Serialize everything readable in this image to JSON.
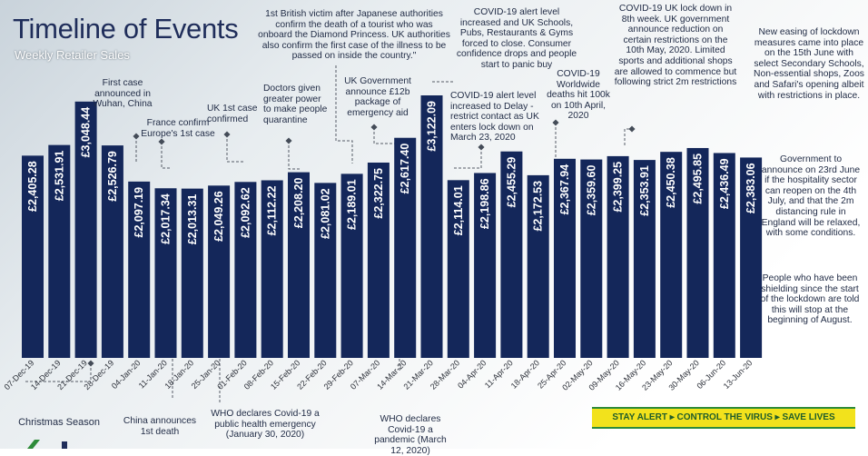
{
  "page": {
    "title": "Timeline of Events",
    "subtitle": "Weekly Retailer Sales",
    "banner": "STAY ALERT ▸ CONTROL THE VIRUS ▸ SAVE LIVES",
    "colors": {
      "bar": "#14275a",
      "title": "#1f2d5a",
      "banner_bg": "#f2e21c",
      "banner_text": "#1f5c2b"
    }
  },
  "chart_data": {
    "type": "bar",
    "title": "Weekly Retailer Sales",
    "xlabel": "",
    "ylabel": "",
    "ylim": [
      0,
      3100
    ],
    "grid": false,
    "categories": [
      "07-Dec-19",
      "14-Dec-19",
      "21-Dec-19",
      "28-Dec-19",
      "04-Jan-20",
      "11-Jan-20",
      "18-Jan-20",
      "25-Jan-20",
      "01-Feb-20",
      "08-Feb-20",
      "15-Feb-20",
      "22-Feb-20",
      "29-Feb-20",
      "07-Mar-20",
      "14-Mar-20",
      "21-Mar-20",
      "28-Mar-20",
      "04-Apr-20",
      "11-Apr-20",
      "18-Apr-20",
      "25-Apr-20",
      "02-May-20",
      "09-May-20",
      "16-May-20",
      "23-May-20",
      "30-May-20",
      "06-Jun-20",
      "13-Jun-20"
    ],
    "values": [
      2405.28,
      2531.91,
      3048.44,
      2526.79,
      2097.19,
      2017.34,
      2013.31,
      2049.26,
      2092.62,
      2112.22,
      2208.2,
      2081.02,
      2189.01,
      2322.75,
      2617.4,
      3122.09,
      2114.01,
      2198.86,
      2455.29,
      2172.53,
      2367.94,
      2359.6,
      2399.25,
      2353.91,
      2450.38,
      2495.85,
      2436.49,
      2383.06
    ],
    "labels": [
      "£2,405.28",
      "£2,531.91",
      "£3,048.44",
      "£2,526.79",
      "£2,097.19",
      "£2,017.34",
      "£2,013.31",
      "£2,049.26",
      "£2,092.62",
      "£2,112.22",
      "£2,208.20",
      "£2,081.02",
      "£2,189.01",
      "£2,322.75",
      "£2,617.40",
      "£3,122.09",
      "£2,114.01",
      "£2,198.86",
      "£2,455.29",
      "£2,172.53",
      "£2,367.94",
      "£2,359.60",
      "£2,399.25",
      "£2,353.91",
      "£2,450.38",
      "£2,495.85",
      "£2,436.49",
      "£2,383.06"
    ],
    "annotations": [
      {
        "text": "Christmas Season"
      },
      {
        "text": "First case announced in Wuhan, China"
      },
      {
        "text": "France confirm Europe's 1st case"
      },
      {
        "text": "China announces 1st death"
      },
      {
        "text": "UK 1st case confirmed"
      },
      {
        "text": "WHO declares Covid-19 a public health emergency (January 30, 2020)"
      },
      {
        "text": "Doctors given greater power to make people quarantine"
      },
      {
        "text": "1st British victim after Japanese authorities confirm the death of a tourist who was onboard the Diamond Princess. UK authorities also confirm the first case of the illness to be passed on inside the country.\""
      },
      {
        "text": "UK Government announce £12b package of emergency aid"
      },
      {
        "text": "WHO declares Covid-19 a pandemic (March 12, 2020)"
      },
      {
        "text": "COVID-19 alert level increased and UK Schools, Pubs, Restaurants & Gyms forced to close. Consumer confidence drops and people start to panic buy"
      },
      {
        "text": "COVID-19 alert level increased to Delay - restrict contact as UK enters lock down on March 23, 2020"
      },
      {
        "text": "COVID-19 Worldwide deaths hit 100k on 10th April, 2020"
      },
      {
        "text": "COVID-19 UK lock down in 8th week. UK government announce reduction on certain restrictions on the 10th May, 2020. Limited sports and additional shops are allowed to commence but following strict 2m restrictions"
      },
      {
        "text": "New easing of lockdown measures came into place on the 15th June with select Secondary Schools, Non-essential shops, Zoos and Safari's opening albeit with restrictions in place."
      },
      {
        "text": "Government to announce on 23rd June if the hospitality sector can reopen on the 4th July, and that the 2m distancing rule in England will be relaxed, with some conditions."
      },
      {
        "text": "People who have been shielding since the start of the lockdown are told this will stop at the beginning of August."
      }
    ]
  }
}
